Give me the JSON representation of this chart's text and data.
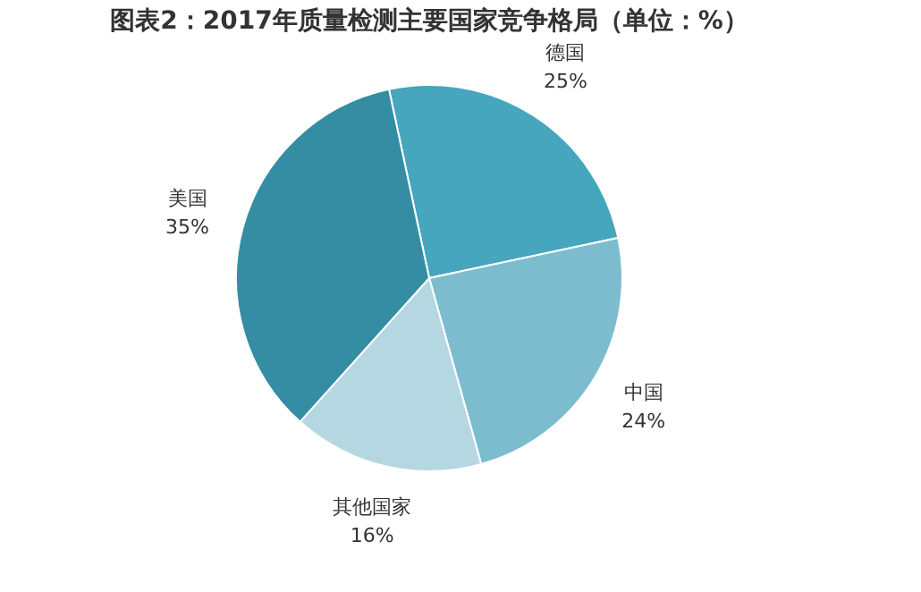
{
  "chart_data": {
    "type": "pie",
    "title": "图表2：2017年质量检测主要国家竞争格局（单位：%）",
    "categories": [
      "德国",
      "中国",
      "其他国家",
      "美国"
    ],
    "values": [
      25,
      24,
      16,
      35
    ],
    "value_labels": [
      "25%",
      "24%",
      "16%",
      "35%"
    ],
    "colors": [
      "#45a6bd",
      "#7dbccf",
      "#b5d7e2",
      "#348da3"
    ]
  }
}
